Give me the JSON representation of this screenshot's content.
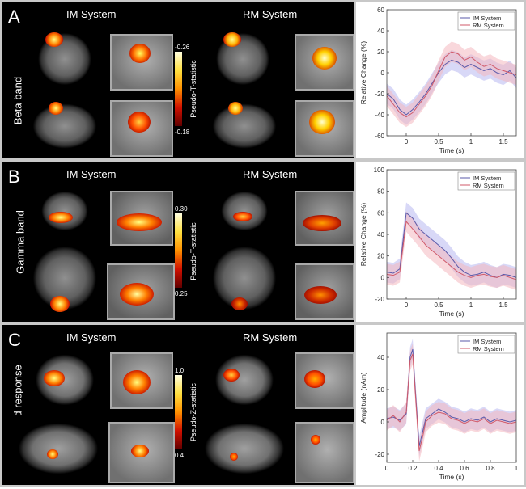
{
  "panels": [
    {
      "letter": "A",
      "band": "Beta band",
      "systems": [
        "IM System",
        "RM System"
      ],
      "colorbar": {
        "top": "-0.26",
        "bottom": "-0.18",
        "title": "Pseudo-T-statistic"
      }
    },
    {
      "letter": "B",
      "band": "Gamma band",
      "systems": [
        "IM System",
        "RM System"
      ],
      "colorbar": {
        "top": "0.30",
        "bottom": "0.25",
        "title": "Pseudo-T-statistic"
      }
    },
    {
      "letter": "C",
      "band": "Evoked response",
      "systems": [
        "IM System",
        "RM System"
      ],
      "colorbar": {
        "top": "1.0",
        "bottom": "0.4",
        "title": "Pseudo-Z-statistic"
      }
    }
  ],
  "colors": {
    "im": "#5a5aaa",
    "rm": "#d05a6a",
    "im_band": "#b8b8f0",
    "rm_band": "#f4b8c0"
  },
  "chart_data": [
    {
      "type": "line",
      "xlabel": "Time (s)",
      "ylabel": "Relative Change (%)",
      "xlim": [
        -0.3,
        1.7
      ],
      "ylim": [
        -60,
        60
      ],
      "xticks": [
        0,
        0.5,
        1,
        1.5
      ],
      "yticks": [
        -60,
        -40,
        -20,
        0,
        20,
        40,
        60
      ],
      "legend": "top-right",
      "x": [
        -0.3,
        -0.2,
        -0.1,
        0.0,
        0.1,
        0.2,
        0.3,
        0.4,
        0.5,
        0.6,
        0.7,
        0.8,
        0.9,
        1.0,
        1.1,
        1.2,
        1.3,
        1.4,
        1.5,
        1.6,
        1.7
      ],
      "series": [
        {
          "name": "IM System",
          "values": [
            -20,
            -25,
            -35,
            -40,
            -35,
            -28,
            -20,
            -10,
            0,
            8,
            12,
            10,
            5,
            8,
            5,
            2,
            4,
            0,
            -2,
            2,
            -5
          ]
        },
        {
          "name": "RM System",
          "values": [
            -22,
            -30,
            -38,
            -42,
            -38,
            -30,
            -22,
            -12,
            2,
            15,
            20,
            18,
            12,
            15,
            10,
            6,
            8,
            4,
            2,
            0,
            -2
          ]
        }
      ]
    },
    {
      "type": "line",
      "xlabel": "Time (s)",
      "ylabel": "Relative Change (%)",
      "xlim": [
        -0.3,
        1.7
      ],
      "ylim": [
        -20,
        100
      ],
      "xticks": [
        0,
        0.5,
        1,
        1.5
      ],
      "yticks": [
        -20,
        0,
        20,
        40,
        60,
        80,
        100
      ],
      "legend": "top-right",
      "x": [
        -0.3,
        -0.2,
        -0.1,
        0.0,
        0.1,
        0.2,
        0.3,
        0.4,
        0.5,
        0.6,
        0.7,
        0.8,
        0.9,
        1.0,
        1.1,
        1.2,
        1.3,
        1.4,
        1.5,
        1.6,
        1.7
      ],
      "series": [
        {
          "name": "IM System",
          "values": [
            5,
            4,
            8,
            60,
            55,
            45,
            40,
            35,
            30,
            25,
            18,
            10,
            5,
            2,
            3,
            5,
            2,
            0,
            3,
            2,
            0
          ]
        },
        {
          "name": "RM System",
          "values": [
            3,
            2,
            5,
            52,
            45,
            38,
            30,
            25,
            20,
            15,
            10,
            5,
            2,
            0,
            2,
            3,
            1,
            0,
            2,
            0,
            -2
          ]
        }
      ]
    },
    {
      "type": "line",
      "xlabel": "Time (s)",
      "ylabel": "Amplitude (nAm)",
      "xlim": [
        0,
        1.0
      ],
      "ylim": [
        -25,
        55
      ],
      "xticks": [
        0,
        0.2,
        0.4,
        0.6,
        0.8,
        1.0
      ],
      "yticks": [
        -20,
        0,
        20,
        40
      ],
      "legend": "top-right",
      "x": [
        0.0,
        0.05,
        0.1,
        0.15,
        0.18,
        0.2,
        0.22,
        0.25,
        0.28,
        0.3,
        0.35,
        0.4,
        0.45,
        0.5,
        0.55,
        0.6,
        0.65,
        0.7,
        0.75,
        0.8,
        0.85,
        0.9,
        0.95,
        1.0
      ],
      "series": [
        {
          "name": "IM System",
          "values": [
            2,
            3,
            1,
            5,
            40,
            45,
            20,
            -15,
            -5,
            2,
            5,
            8,
            6,
            3,
            2,
            0,
            2,
            1,
            3,
            0,
            2,
            1,
            0,
            1
          ]
        },
        {
          "name": "RM System",
          "values": [
            1,
            4,
            0,
            6,
            38,
            42,
            18,
            -18,
            -8,
            0,
            4,
            6,
            5,
            2,
            1,
            -1,
            1,
            0,
            2,
            -1,
            1,
            0,
            -1,
            0
          ]
        }
      ]
    }
  ]
}
